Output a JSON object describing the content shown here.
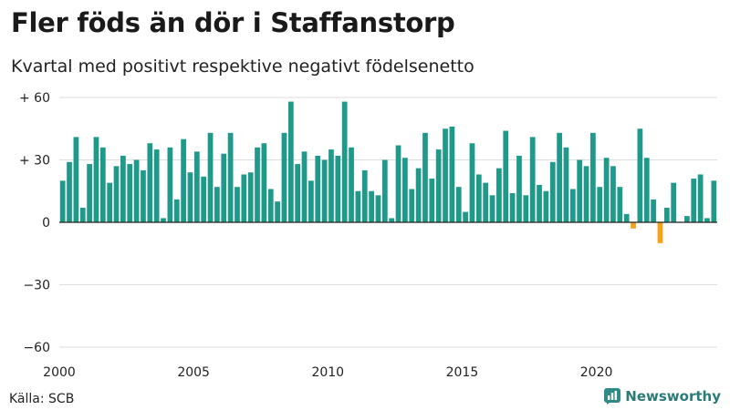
{
  "title": "Fler föds än dör i Staffanstorp",
  "subtitle": "Kvartal med positivt respektive negativt födelsenetto",
  "source": "Källa: SCB",
  "brand": {
    "name": "Newsworthy",
    "icon": "bar-chart-logo-icon",
    "color": "#2e8b87"
  },
  "colors": {
    "positive": "#1f9a8a",
    "negative": "#f5a21b",
    "grid": "#dddddd",
    "zero": "#222222"
  },
  "chart_data": {
    "type": "bar",
    "x_unit": "quarter",
    "start": "2000 Q1",
    "ylim": [
      -60,
      60
    ],
    "yticks": [
      {
        "value": 60,
        "label": "+ 60"
      },
      {
        "value": 30,
        "label": "+ 30"
      },
      {
        "value": 0,
        "label": "0"
      },
      {
        "value": -30,
        "label": "−30"
      },
      {
        "value": -60,
        "label": "−60"
      }
    ],
    "xticks": [
      "2000",
      "2005",
      "2010",
      "2015",
      "2020"
    ],
    "grid": true,
    "values": [
      20,
      29,
      41,
      7,
      28,
      41,
      36,
      19,
      27,
      32,
      28,
      30,
      25,
      38,
      35,
      2,
      36,
      11,
      40,
      24,
      34,
      22,
      43,
      17,
      33,
      43,
      17,
      23,
      24,
      36,
      38,
      16,
      10,
      43,
      58,
      28,
      34,
      20,
      32,
      30,
      35,
      32,
      58,
      36,
      15,
      25,
      15,
      13,
      30,
      2,
      37,
      31,
      16,
      26,
      43,
      21,
      35,
      45,
      46,
      17,
      5,
      38,
      23,
      19,
      13,
      26,
      44,
      14,
      32,
      13,
      41,
      18,
      15,
      29,
      43,
      36,
      16,
      30,
      27,
      43,
      17,
      31,
      27,
      17,
      4,
      -3,
      45,
      31,
      11,
      -10,
      7,
      19,
      0,
      3,
      21,
      23,
      2,
      20
    ]
  }
}
